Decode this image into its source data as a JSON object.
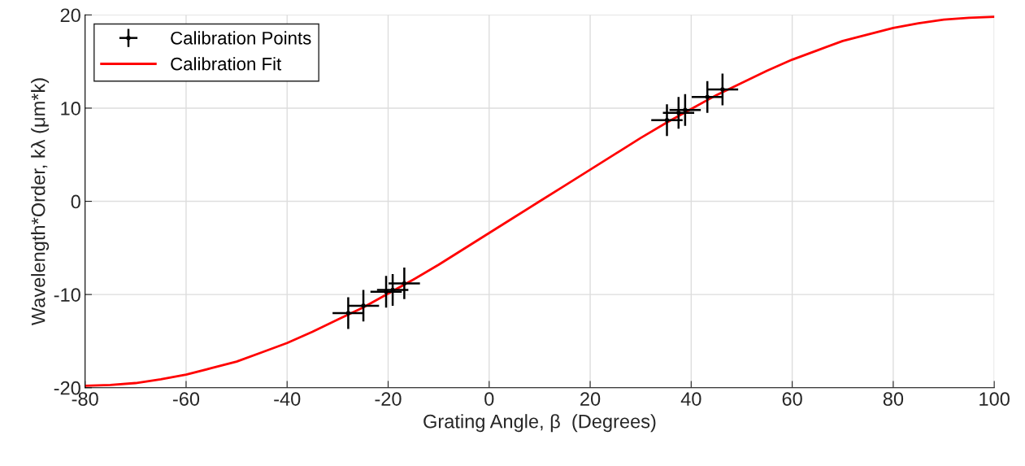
{
  "chart_data": {
    "type": "scatter",
    "xlabel": "Grating Angle, β  (Degrees)",
    "ylabel": "Wavelength*Order, kλ (μm*k)",
    "xlim": [
      -80,
      100
    ],
    "xticks": [
      -80,
      -60,
      -40,
      -20,
      0,
      20,
      40,
      60,
      80,
      100
    ],
    "ylim": [
      -20,
      20
    ],
    "yticks": [
      -20,
      -10,
      0,
      10,
      20
    ],
    "grid": true,
    "legend": "top left",
    "series": [
      {
        "name": "Calibration Points",
        "color": "#000000",
        "marker": "circle",
        "x": [
          -27.9,
          -24.9,
          -20.4,
          -19.1,
          -16.8,
          35.2,
          37.5,
          38.8,
          43.2,
          46.2
        ],
        "values": [
          -12.0,
          -11.2,
          -9.7,
          -9.5,
          -8.8,
          8.7,
          9.5,
          9.8,
          11.2,
          12.0
        ],
        "errors": [
          1.7,
          1.7,
          1.7,
          1.7,
          1.7,
          1.7,
          1.7,
          1.7,
          1.7,
          1.7
        ],
        "xerrors": [
          3.1,
          3.1,
          3.1,
          3.1,
          3.1,
          3.1,
          3.1,
          3.1,
          3.1,
          3.1
        ]
      },
      {
        "name": "Calibration Fit",
        "type": "line",
        "color": "#ff0000",
        "line_style": "solid",
        "x": [
          -80,
          -75,
          -70,
          -65,
          -60,
          -55,
          -50,
          -45,
          -40,
          -35,
          -30,
          -25,
          -20,
          -15,
          -10,
          -5,
          0,
          5,
          10,
          15,
          20,
          25,
          30,
          35,
          40,
          45,
          50,
          55,
          60,
          65,
          70,
          75,
          80,
          85,
          90,
          95,
          100
        ],
        "values": [
          -19.8,
          -19.7,
          -19.5,
          -19.1,
          -18.6,
          -17.9,
          -17.2,
          -16.2,
          -15.2,
          -14.0,
          -12.7,
          -11.4,
          -9.9,
          -8.4,
          -6.8,
          -5.1,
          -3.4,
          -1.7,
          0.0,
          1.7,
          3.4,
          5.1,
          6.8,
          8.4,
          9.9,
          11.4,
          12.7,
          14.0,
          15.2,
          16.2,
          17.2,
          17.9,
          18.6,
          19.1,
          19.5,
          19.7,
          19.8
        ]
      }
    ]
  }
}
